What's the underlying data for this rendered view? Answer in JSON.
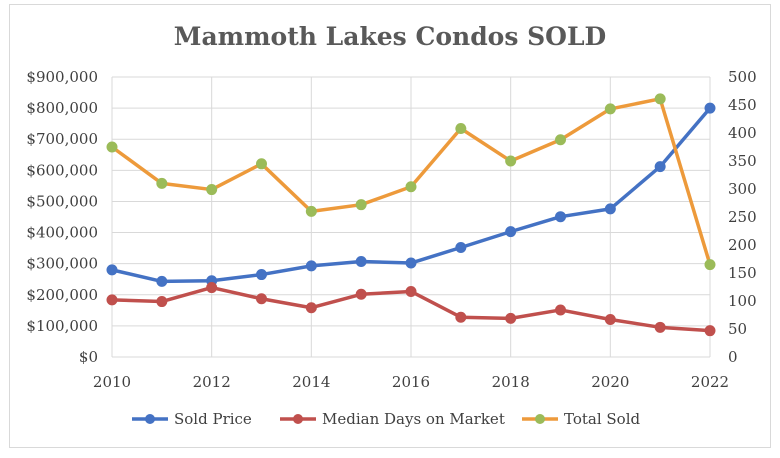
{
  "chart_data": {
    "type": "line",
    "title": "Mammoth Lakes Condos SOLD",
    "x": [
      2010,
      2011,
      2012,
      2013,
      2014,
      2015,
      2016,
      2017,
      2018,
      2019,
      2020,
      2021,
      2022
    ],
    "x_tick_labels": [
      "2010",
      "2012",
      "2014",
      "2016",
      "2018",
      "2020",
      "2022"
    ],
    "xlim": [
      2010,
      2022
    ],
    "y_left": {
      "ylim": [
        0,
        900000
      ],
      "tick_labels": [
        "$0",
        "$100,000",
        "$200,000",
        "$300,000",
        "$400,000",
        "$500,000",
        "$600,000",
        "$700,000",
        "$800,000",
        "$900,000"
      ],
      "tick_values": [
        0,
        100000,
        200000,
        300000,
        400000,
        500000,
        600000,
        700000,
        800000,
        900000
      ]
    },
    "y_right": {
      "ylim": [
        0,
        500
      ],
      "tick_labels": [
        "0",
        "50",
        "100",
        "150",
        "200",
        "250",
        "300",
        "350",
        "400",
        "450",
        "500"
      ],
      "tick_values": [
        0,
        50,
        100,
        150,
        200,
        250,
        300,
        350,
        400,
        450,
        500
      ]
    },
    "grid": true,
    "legend_position": "bottom",
    "series": [
      {
        "name": "Sold Price",
        "axis": "left",
        "color": "#4472c4",
        "values": [
          280000,
          243000,
          245000,
          265000,
          293000,
          307000,
          302000,
          352000,
          403000,
          451000,
          476000,
          612000,
          800000
        ]
      },
      {
        "name": "Median Days on Market",
        "axis": "right",
        "color": "#c0504d",
        "values": [
          102,
          99,
          124,
          104,
          88,
          112,
          117,
          71,
          69,
          84,
          67,
          53,
          47
        ]
      },
      {
        "name": "Total Sold",
        "axis": "right",
        "color": "#ed9a3b",
        "marker_color": "#9bbb59",
        "values": [
          375,
          310,
          299,
          345,
          260,
          272,
          304,
          408,
          350,
          388,
          443,
          461,
          165
        ]
      }
    ]
  }
}
